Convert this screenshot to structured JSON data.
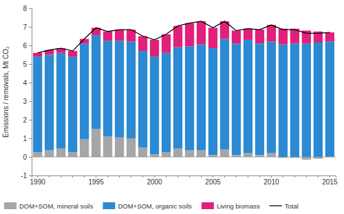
{
  "chart_data": {
    "type": "bar",
    "stacked": true,
    "grid": false,
    "legend": "bottom",
    "y_label": "Emissions / removals, Mt CO₂",
    "categories": [
      "1990",
      null,
      null,
      null,
      null,
      "1995",
      null,
      null,
      null,
      null,
      "2000",
      null,
      null,
      null,
      null,
      "2005",
      null,
      null,
      null,
      null,
      "2010",
      null,
      null,
      null,
      null,
      "2015"
    ],
    "series": [
      {
        "name": "DOM+SOM, mineral soils",
        "type": "bar",
        "color": "#a6a6a6",
        "values": [
          0.25,
          0.35,
          0.45,
          0.25,
          0.95,
          1.5,
          1.1,
          1.05,
          1.0,
          0.5,
          0.15,
          0.25,
          0.45,
          0.35,
          0.35,
          0.1,
          0.4,
          0.1,
          0.2,
          0.1,
          0.2,
          -0.05,
          -0.05,
          -0.15,
          -0.1,
          0.0
        ]
      },
      {
        "name": "DOM+SOM, organic soils",
        "type": "bar",
        "color": "#2b8ad3",
        "values": [
          5.15,
          5.15,
          5.15,
          5.15,
          5.15,
          5.05,
          5.15,
          5.2,
          5.2,
          5.2,
          5.25,
          5.35,
          5.45,
          5.6,
          5.7,
          5.75,
          5.95,
          6.0,
          6.1,
          6.0,
          6.0,
          6.05,
          6.1,
          6.1,
          6.15,
          6.2
        ]
      },
      {
        "name": "Living biomass",
        "type": "bar",
        "color": "#e0207a",
        "values": [
          0.2,
          0.25,
          0.25,
          0.3,
          0.25,
          0.4,
          0.5,
          0.6,
          0.65,
          0.8,
          0.9,
          1.0,
          1.15,
          1.25,
          1.25,
          1.1,
          0.95,
          0.7,
          0.6,
          0.75,
          0.9,
          0.85,
          0.8,
          0.7,
          0.6,
          0.5
        ]
      },
      {
        "name": "Total",
        "type": "line",
        "color": "#000000",
        "values": [
          5.6,
          5.75,
          5.85,
          5.7,
          6.35,
          6.95,
          6.75,
          6.85,
          6.85,
          6.5,
          6.3,
          6.6,
          7.05,
          7.2,
          7.3,
          6.95,
          7.3,
          6.8,
          6.9,
          6.85,
          7.1,
          6.85,
          6.85,
          6.65,
          6.65,
          6.7
        ]
      }
    ],
    "ylim": [
      -1,
      8
    ],
    "yticks": [
      -1,
      0,
      1,
      2,
      3,
      4,
      5,
      6,
      7,
      8
    ]
  }
}
